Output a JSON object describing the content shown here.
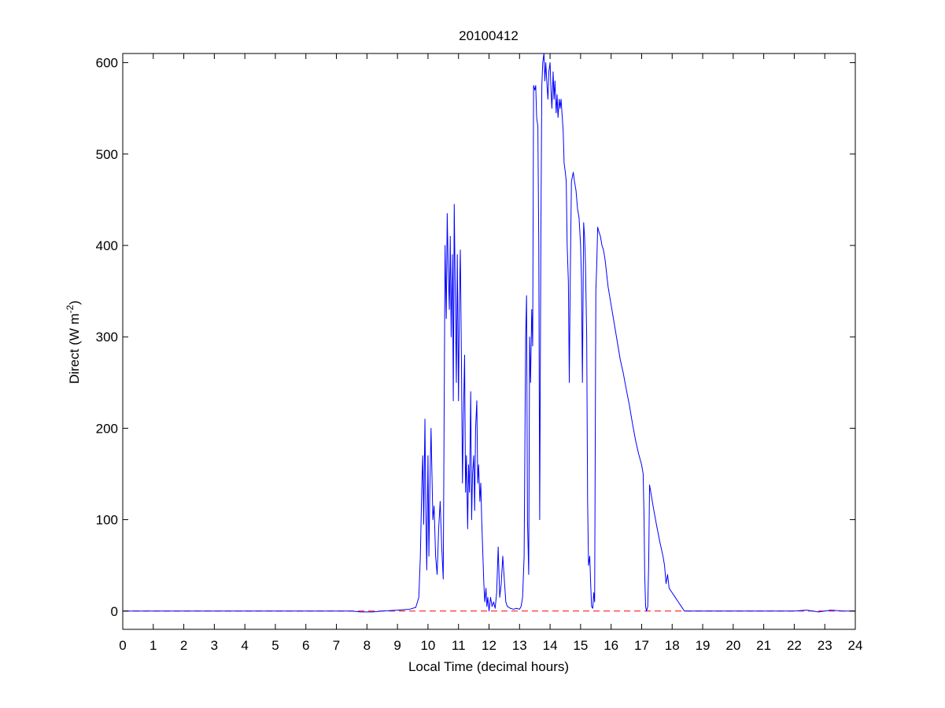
{
  "chart_data": {
    "type": "line",
    "title": "20100412",
    "xlabel": "Local Time (decimal hours)",
    "ylabel_main": "Direct (W m",
    "ylabel_sup": "-2",
    "ylabel_end": ")",
    "xlim": [
      0,
      24
    ],
    "ylim": [
      -20,
      610
    ],
    "xticks": [
      0,
      1,
      2,
      3,
      4,
      5,
      6,
      7,
      8,
      9,
      10,
      11,
      12,
      13,
      14,
      15,
      16,
      17,
      18,
      19,
      20,
      21,
      22,
      23,
      24
    ],
    "yticks": [
      0,
      100,
      200,
      300,
      400,
      500,
      600
    ],
    "grid": false,
    "legend": "none",
    "line_color": "#0000ff",
    "reference_line": {
      "y": 0,
      "color": "#ff0000",
      "style": "dashed"
    },
    "series": [
      {
        "points": [
          [
            0,
            0
          ],
          [
            7.5,
            0
          ],
          [
            7.8,
            -1
          ],
          [
            8.2,
            -1
          ],
          [
            8.5,
            0
          ],
          [
            9.0,
            1
          ],
          [
            9.4,
            2
          ],
          [
            9.6,
            4
          ],
          [
            9.7,
            15
          ],
          [
            9.75,
            60
          ],
          [
            9.8,
            140
          ],
          [
            9.83,
            170
          ],
          [
            9.86,
            95
          ],
          [
            9.9,
            210
          ],
          [
            9.93,
            110
          ],
          [
            9.96,
            45
          ],
          [
            10.0,
            170
          ],
          [
            10.03,
            60
          ],
          [
            10.06,
            130
          ],
          [
            10.1,
            200
          ],
          [
            10.13,
            150
          ],
          [
            10.16,
            100
          ],
          [
            10.2,
            115
          ],
          [
            10.25,
            60
          ],
          [
            10.3,
            40
          ],
          [
            10.35,
            90
          ],
          [
            10.4,
            120
          ],
          [
            10.45,
            70
          ],
          [
            10.5,
            35
          ],
          [
            10.53,
            220
          ],
          [
            10.56,
            400
          ],
          [
            10.6,
            320
          ],
          [
            10.63,
            435
          ],
          [
            10.66,
            380
          ],
          [
            10.7,
            330
          ],
          [
            10.73,
            410
          ],
          [
            10.76,
            300
          ],
          [
            10.8,
            390
          ],
          [
            10.83,
            230
          ],
          [
            10.86,
            445
          ],
          [
            10.9,
            330
          ],
          [
            10.93,
            250
          ],
          [
            10.96,
            390
          ],
          [
            11.0,
            230
          ],
          [
            11.03,
            340
          ],
          [
            11.06,
            395
          ],
          [
            11.1,
            260
          ],
          [
            11.13,
            140
          ],
          [
            11.16,
            210
          ],
          [
            11.2,
            280
          ],
          [
            11.23,
            130
          ],
          [
            11.26,
            170
          ],
          [
            11.3,
            90
          ],
          [
            11.33,
            160
          ],
          [
            11.36,
            130
          ],
          [
            11.4,
            240
          ],
          [
            11.43,
            100
          ],
          [
            11.46,
            150
          ],
          [
            11.5,
            170
          ],
          [
            11.53,
            110
          ],
          [
            11.56,
            200
          ],
          [
            11.6,
            230
          ],
          [
            11.63,
            140
          ],
          [
            11.66,
            160
          ],
          [
            11.7,
            120
          ],
          [
            11.73,
            140
          ],
          [
            11.76,
            100
          ],
          [
            11.8,
            60
          ],
          [
            11.83,
            30
          ],
          [
            11.86,
            10
          ],
          [
            11.9,
            25
          ],
          [
            11.93,
            5
          ],
          [
            11.96,
            15
          ],
          [
            12.0,
            0
          ],
          [
            12.05,
            15
          ],
          [
            12.1,
            5
          ],
          [
            12.15,
            10
          ],
          [
            12.2,
            3
          ],
          [
            12.25,
            20
          ],
          [
            12.3,
            70
          ],
          [
            12.35,
            15
          ],
          [
            12.4,
            30
          ],
          [
            12.45,
            60
          ],
          [
            12.5,
            35
          ],
          [
            12.55,
            10
          ],
          [
            12.6,
            5
          ],
          [
            12.7,
            3
          ],
          [
            12.8,
            2
          ],
          [
            12.9,
            3
          ],
          [
            13.0,
            2
          ],
          [
            13.05,
            5
          ],
          [
            13.1,
            15
          ],
          [
            13.15,
            60
          ],
          [
            13.2,
            300
          ],
          [
            13.23,
            345
          ],
          [
            13.26,
            100
          ],
          [
            13.3,
            40
          ],
          [
            13.33,
            300
          ],
          [
            13.36,
            250
          ],
          [
            13.4,
            330
          ],
          [
            13.43,
            290
          ],
          [
            13.46,
            575
          ],
          [
            13.5,
            570
          ],
          [
            13.53,
            575
          ],
          [
            13.56,
            540
          ],
          [
            13.6,
            530
          ],
          [
            13.63,
            400
          ],
          [
            13.66,
            100
          ],
          [
            13.7,
            420
          ],
          [
            13.73,
            575
          ],
          [
            13.76,
            600
          ],
          [
            13.8,
            610
          ],
          [
            13.83,
            580
          ],
          [
            13.86,
            600
          ],
          [
            13.9,
            575
          ],
          [
            13.93,
            560
          ],
          [
            13.96,
            590
          ],
          [
            14.0,
            600
          ],
          [
            14.03,
            570
          ],
          [
            14.06,
            550
          ],
          [
            14.1,
            590
          ],
          [
            14.13,
            560
          ],
          [
            14.16,
            580
          ],
          [
            14.2,
            545
          ],
          [
            14.23,
            565
          ],
          [
            14.26,
            540
          ],
          [
            14.3,
            560
          ],
          [
            14.33,
            550
          ],
          [
            14.36,
            560
          ],
          [
            14.4,
            540
          ],
          [
            14.43,
            525
          ],
          [
            14.46,
            490
          ],
          [
            14.5,
            480
          ],
          [
            14.53,
            470
          ],
          [
            14.56,
            400
          ],
          [
            14.6,
            360
          ],
          [
            14.63,
            250
          ],
          [
            14.66,
            360
          ],
          [
            14.7,
            470
          ],
          [
            14.73,
            475
          ],
          [
            14.76,
            480
          ],
          [
            14.8,
            470
          ],
          [
            14.85,
            460
          ],
          [
            14.9,
            440
          ],
          [
            14.95,
            430
          ],
          [
            15.0,
            400
          ],
          [
            15.03,
            360
          ],
          [
            15.06,
            250
          ],
          [
            15.1,
            425
          ],
          [
            15.13,
            410
          ],
          [
            15.16,
            380
          ],
          [
            15.2,
            300
          ],
          [
            15.23,
            120
          ],
          [
            15.26,
            50
          ],
          [
            15.3,
            60
          ],
          [
            15.33,
            30
          ],
          [
            15.36,
            5
          ],
          [
            15.4,
            3
          ],
          [
            15.43,
            20
          ],
          [
            15.46,
            10
          ],
          [
            15.5,
            350
          ],
          [
            15.53,
            380
          ],
          [
            15.56,
            420
          ],
          [
            15.6,
            415
          ],
          [
            15.65,
            410
          ],
          [
            15.7,
            400
          ],
          [
            15.75,
            395
          ],
          [
            15.8,
            385
          ],
          [
            15.85,
            370
          ],
          [
            15.9,
            355
          ],
          [
            16.0,
            335
          ],
          [
            16.1,
            315
          ],
          [
            16.2,
            295
          ],
          [
            16.3,
            275
          ],
          [
            16.4,
            260
          ],
          [
            16.5,
            242
          ],
          [
            16.6,
            225
          ],
          [
            16.7,
            205
          ],
          [
            16.8,
            187
          ],
          [
            16.9,
            172
          ],
          [
            17.0,
            160
          ],
          [
            17.05,
            150
          ],
          [
            17.08,
            100
          ],
          [
            17.1,
            40
          ],
          [
            17.13,
            5
          ],
          [
            17.16,
            0
          ],
          [
            17.2,
            5
          ],
          [
            17.23,
            50
          ],
          [
            17.26,
            138
          ],
          [
            17.3,
            130
          ],
          [
            17.4,
            110
          ],
          [
            17.5,
            92
          ],
          [
            17.6,
            75
          ],
          [
            17.7,
            60
          ],
          [
            17.75,
            50
          ],
          [
            17.8,
            30
          ],
          [
            17.85,
            40
          ],
          [
            17.9,
            25
          ],
          [
            18.0,
            20
          ],
          [
            18.1,
            15
          ],
          [
            18.2,
            10
          ],
          [
            18.3,
            5
          ],
          [
            18.4,
            0
          ],
          [
            18.5,
            0
          ],
          [
            19.0,
            0
          ],
          [
            20.0,
            0
          ],
          [
            21.0,
            0
          ],
          [
            22.0,
            0
          ],
          [
            22.4,
            1
          ],
          [
            22.8,
            -1
          ],
          [
            23.2,
            1
          ],
          [
            23.6,
            0
          ],
          [
            24.0,
            0
          ]
        ]
      }
    ]
  }
}
